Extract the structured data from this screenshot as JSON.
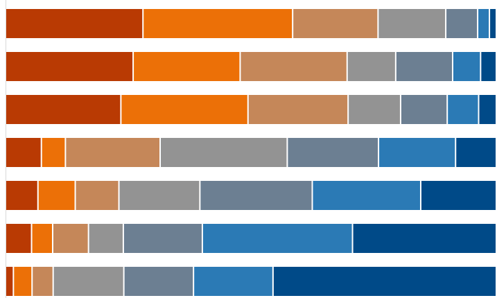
{
  "chart_data": {
    "type": "bar",
    "orientation": "horizontal",
    "stacked": true,
    "normalized": true,
    "title": "",
    "xlabel": "",
    "ylabel": "",
    "grid": false,
    "legend": "none",
    "xlim": [
      0,
      100
    ],
    "rows": 7,
    "series": [
      {
        "color": "#b93a03",
        "values": [
          28.0,
          26.0,
          23.5,
          7.3,
          6.6,
          5.3,
          1.6
        ]
      },
      {
        "color": "#ec7007",
        "values": [
          30.5,
          21.8,
          25.9,
          4.9,
          7.6,
          4.3,
          3.8
        ]
      },
      {
        "color": "#c58759",
        "values": [
          17.4,
          21.8,
          20.4,
          19.3,
          8.9,
          7.3,
          4.3
        ]
      },
      {
        "color": "#939393",
        "values": [
          13.8,
          9.9,
          10.7,
          25.9,
          16.5,
          7.1,
          14.4
        ]
      },
      {
        "color": "#6c7f92",
        "values": [
          6.5,
          11.6,
          9.5,
          18.6,
          22.9,
          16.1,
          14.2
        ]
      },
      {
        "color": "#2b7ab5",
        "values": [
          2.4,
          5.7,
          6.4,
          15.7,
          22.1,
          30.6,
          16.2
        ]
      },
      {
        "color": "#004a88",
        "values": [
          1.4,
          3.2,
          3.6,
          8.3,
          15.4,
          29.3,
          45.5
        ]
      }
    ]
  }
}
